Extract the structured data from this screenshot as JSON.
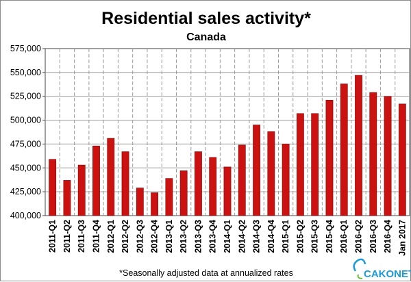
{
  "chart_data": {
    "type": "bar",
    "title": "Residential sales activity*",
    "subtitle": "Canada",
    "categories": [
      "2011-Q1",
      "2011-Q2",
      "2011-Q3",
      "2011-Q4",
      "2012-Q1",
      "2012-Q2",
      "2012-Q3",
      "2012-Q4",
      "2013-Q1",
      "2013-Q2",
      "2013-Q3",
      "2013-Q4",
      "2014-Q1",
      "2014-Q2",
      "2014-Q3",
      "2014-Q4",
      "2015-Q1",
      "2015-Q2",
      "2015-Q3",
      "2015-Q4",
      "2016-Q1",
      "2016-Q2",
      "2016-Q3",
      "2016-Q4",
      "Jan 2017"
    ],
    "values": [
      459000,
      437000,
      453000,
      473000,
      481000,
      467000,
      429000,
      424000,
      439000,
      447000,
      467000,
      461000,
      451000,
      474000,
      495000,
      488000,
      475000,
      507000,
      507000,
      521000,
      538000,
      547000,
      529000,
      525000,
      517000
    ],
    "ylim": [
      400000,
      575000
    ],
    "yticks": [
      "400,000",
      "425,000",
      "450,000",
      "475,000",
      "500,000",
      "525,000",
      "550,000",
      "575,000"
    ],
    "xlabel": "",
    "ylabel": "",
    "grid": true,
    "bar_color": "#cc1111",
    "footnote": "*Seasonally adjusted data at annualized rates"
  },
  "watermark": {
    "text": "CAKONET"
  }
}
